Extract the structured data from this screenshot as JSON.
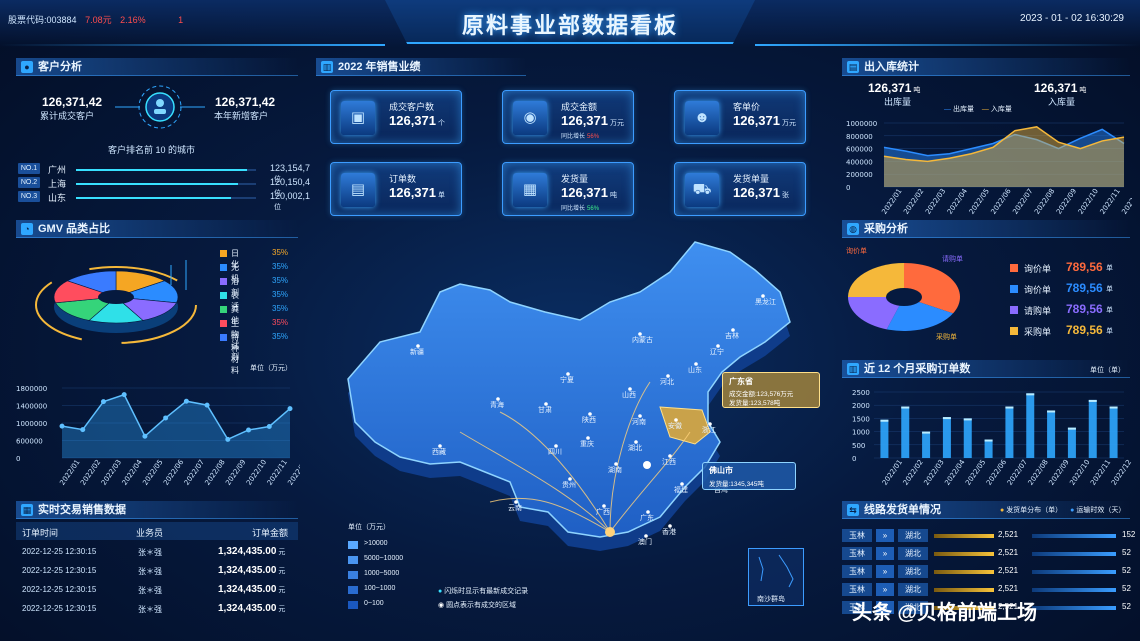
{
  "header": {
    "title": "原料事业部数据看板",
    "stock_label": "股票代码:003884",
    "stock_price": "7.08元",
    "stock_change": "2.16%",
    "stock_flag": "1",
    "datetime": "2023 - 01 - 02  16:30:29"
  },
  "customer": {
    "section_title": "客户分析",
    "total_value": "126,371,42",
    "total_label": "累计成交客户",
    "new_value": "126,371,42",
    "new_label": "本年新增客户",
    "rank_title": "客户排名前 10 的城市",
    "ranks": [
      {
        "badge": "NO.1",
        "city": "广州",
        "value": "123,154,7",
        "unit": "位",
        "fill": 0.95
      },
      {
        "badge": "NO.2",
        "city": "上海",
        "value": "120,150,4",
        "unit": "位",
        "fill": 0.9
      },
      {
        "badge": "NO.3",
        "city": "山东",
        "value": "120,002,1",
        "unit": "位",
        "fill": 0.86
      }
    ]
  },
  "gmv": {
    "section_title": "GMV 品类占比",
    "legend": [
      {
        "name": "日化",
        "pct": "35%",
        "color": "#f5a623"
      },
      {
        "name": "无机",
        "pct": "35%",
        "color": "#2b8cff"
      },
      {
        "name": "溶剂",
        "pct": "35%",
        "color": "#8a6cff"
      },
      {
        "name": "表活",
        "pct": "35%",
        "color": "#2fe0e8"
      },
      {
        "name": "其他",
        "pct": "35%",
        "color": "#35d47a"
      },
      {
        "name": "生物试剂",
        "pct": "35%",
        "color": "#ff4d5e"
      },
      {
        "name": "特种材料",
        "pct": "35%",
        "color": "#3a7bff"
      }
    ],
    "unit_label": "单位（万元）"
  },
  "gmv_line": {
    "type": "area",
    "categories": [
      "2022/01",
      "2022/02",
      "2022/03",
      "2022/04",
      "2022/05",
      "2022/06",
      "2022/07",
      "2022/08",
      "2022/09",
      "2022/10",
      "2022/11",
      "2022/12"
    ],
    "values": [
      820000,
      730000,
      1450000,
      1630000,
      560000,
      1030000,
      1460000,
      1360000,
      480000,
      720000,
      810000,
      1270000
    ],
    "ylim": [
      0,
      1800000
    ],
    "yticks": [
      "1800000",
      "1400000",
      "1000000",
      "600000",
      "0"
    ]
  },
  "sales": {
    "section_title": "2022 年销售业绩",
    "cards": [
      {
        "label": "成交客户数",
        "value": "126,371",
        "unit": "个",
        "growth_label": "",
        "growth": "",
        "icon": "user-square-icon",
        "glyph": "▣"
      },
      {
        "label": "成交金额",
        "value": "126,371",
        "unit": "万元",
        "growth_label": "同比增长",
        "growth": "56%",
        "growth_color": "red",
        "icon": "coin-icon",
        "glyph": "◉"
      },
      {
        "label": "客单价",
        "value": "126,371",
        "unit": "万元",
        "growth_label": "",
        "growth": "",
        "icon": "person-icon",
        "glyph": "☻"
      },
      {
        "label": "订单数",
        "value": "126,371",
        "unit": "单",
        "growth_label": "",
        "growth": "",
        "icon": "document-icon",
        "glyph": "▤"
      },
      {
        "label": "发货量",
        "value": "126,371",
        "unit": "吨",
        "growth_label": "同比增长",
        "growth": "56%",
        "growth_color": "green",
        "icon": "box-icon",
        "glyph": "▦"
      },
      {
        "label": "发货单量",
        "value": "126,371",
        "unit": "张",
        "growth_label": "",
        "growth": "",
        "icon": "truck-icon",
        "glyph": "⛟"
      }
    ]
  },
  "map": {
    "tooltip_guangdong_title": "广东省",
    "tooltip_guangdong_line1": "成交金额:123,576万元",
    "tooltip_guangdong_line2": "发货量:123,578吨",
    "tooltip_foshan_title": "佛山市",
    "tooltip_foshan_line1": "发货量:1345,345吨",
    "provinces": [
      "新疆",
      "西藏",
      "青海",
      "甘肃",
      "四川",
      "云南",
      "内蒙古",
      "黑龙江",
      "吉林",
      "辽宁",
      "河北",
      "山西",
      "陕西",
      "河南",
      "湖北",
      "湖南",
      "贵州",
      "广西",
      "广东",
      "福建",
      "江西",
      "浙江",
      "安徽",
      "山东",
      "宁夏",
      "重庆",
      "澳门",
      "香港",
      "台湾"
    ],
    "legend_unit": "单位（万元）",
    "legend": [
      ">10000",
      "5000~10000",
      "1000~5000",
      "100~1000",
      "0~100"
    ],
    "note1": "闪烁时显示有最新成交记录",
    "note2": "圆点表示有成交的区域",
    "inset_label": "南沙群岛"
  },
  "transactions": {
    "section_title": "实时交易销售数据",
    "col_time": "订单时间",
    "col_rep": "业务员",
    "col_amount": "订单金额",
    "rows": [
      {
        "time": "2022-12-25 12:30:15",
        "rep": "张＊强",
        "amount": "1,324,435.00",
        "unit": "元"
      },
      {
        "time": "2022-12-25 12:30:15",
        "rep": "张＊强",
        "amount": "1,324,435.00",
        "unit": "元"
      },
      {
        "time": "2022-12-25 12:30:15",
        "rep": "张＊强",
        "amount": "1,324,435.00",
        "unit": "元"
      },
      {
        "time": "2022-12-25 12:30:15",
        "rep": "张＊强",
        "amount": "1,324,435.00",
        "unit": "元"
      }
    ]
  },
  "inout": {
    "section_title": "出入库统计",
    "out_value": "126,371",
    "out_unit": "吨",
    "out_label": "出库量",
    "in_value": "126,371",
    "in_unit": "吨",
    "in_label": "入库量",
    "legend_out": "出库量",
    "legend_in": "入库量"
  },
  "inout_chart": {
    "type": "area",
    "categories": [
      "2022/01",
      "2022/02",
      "2022/03",
      "2022/04",
      "2022/05",
      "2022/06",
      "2022/07",
      "2022/08",
      "2022/09",
      "2022/10",
      "2022/11",
      "2022/12"
    ],
    "series": [
      {
        "name": "出库量",
        "values": [
          620000,
          560000,
          490000,
          520000,
          600000,
          680000,
          820000,
          740000,
          600000,
          760000,
          900000,
          680000
        ],
        "color": "#2b8cff"
      },
      {
        "name": "入库量",
        "values": [
          480000,
          430000,
          400000,
          450000,
          520000,
          620000,
          880000,
          940000,
          700000,
          600000,
          720000,
          780000
        ],
        "color": "#f5b83a"
      }
    ],
    "ylim": [
      0,
      1000000
    ],
    "yticks": [
      "1000000",
      "800000",
      "600000",
      "400000",
      "200000",
      "0"
    ]
  },
  "purchase": {
    "section_title": "采购分析",
    "items": [
      {
        "name": "询价单",
        "value": "789,56",
        "unit": "单",
        "color": "#ff6a3d"
      },
      {
        "name": "询价单",
        "value": "789,56",
        "unit": "单",
        "color": "#2b8cff"
      },
      {
        "name": "请购单",
        "value": "789,56",
        "unit": "单",
        "color": "#8a6cff"
      },
      {
        "name": "采购单",
        "value": "789,56",
        "unit": "单",
        "color": "#f5b83a"
      }
    ],
    "pie_labels": [
      "询价单",
      "请购单",
      "采购单"
    ]
  },
  "orders12": {
    "section_title": "近 12 个月采购订单数",
    "unit_label": "单位（单）"
  },
  "orders_chart": {
    "type": "bar",
    "categories": [
      "2022/01",
      "2022/02",
      "2022/03",
      "2022/04",
      "2022/05",
      "2022/06",
      "2022/07",
      "2022/08",
      "2022/09",
      "2022/10",
      "2022/11",
      "2022/12"
    ],
    "values": [
      1450,
      1950,
      1000,
      1550,
      1500,
      700,
      1950,
      2450,
      1800,
      1150,
      2200,
      1950
    ],
    "ylim": [
      0,
      2500
    ],
    "yticks": [
      "2500",
      "2000",
      "1500",
      "1000",
      "500",
      "0"
    ]
  },
  "routes": {
    "section_title": "线路发货单情况",
    "legend1": "发货单分布（单）",
    "legend2": "运输时效（天）",
    "rows": [
      {
        "from": "玉林",
        "to": "湖北",
        "count": "2,521",
        "days": "152"
      },
      {
        "from": "玉林",
        "to": "湖北",
        "count": "2,521",
        "days": "52"
      },
      {
        "from": "玉林",
        "to": "湖北",
        "count": "2,521",
        "days": "52"
      },
      {
        "from": "玉林",
        "to": "湖北",
        "count": "2,521",
        "days": "52"
      },
      {
        "from": "玉林",
        "to": "湖北",
        "count": "2,521",
        "days": "52"
      }
    ]
  },
  "watermark": "头条 @贝格前端工场"
}
